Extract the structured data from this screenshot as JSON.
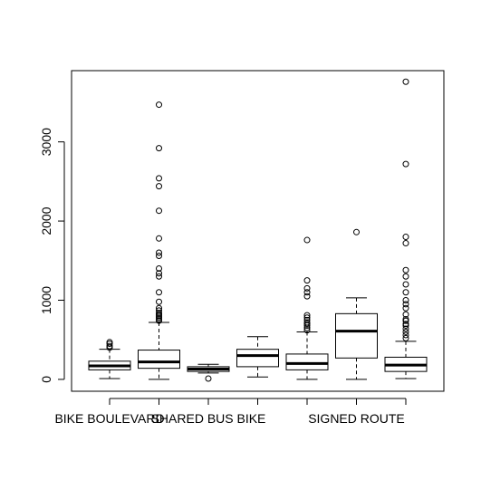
{
  "chart_data": {
    "type": "boxplot",
    "title": "",
    "xlabel": "",
    "ylabel": "",
    "ylim": [
      -150,
      3900
    ],
    "yticks": [
      0,
      1000,
      2000,
      3000
    ],
    "ytick_labels": [
      "0",
      "1000",
      "2000",
      "3000"
    ],
    "xtick_labels_shown": [
      "BIKE BOULEVARD",
      "SHARED BUS BIKE",
      "SIGNED ROUTE"
    ],
    "grid": false,
    "boxes": [
      {
        "label": "BIKE BOULEVARD",
        "label_shown": true,
        "whisker_low": 10,
        "q1": 120,
        "median": 170,
        "q3": 230,
        "whisker_high": 380,
        "outliers": [
          400,
          420,
          450,
          470
        ]
      },
      {
        "label": "",
        "label_shown": false,
        "whisker_low": 0,
        "q1": 140,
        "median": 220,
        "q3": 370,
        "whisker_high": 720,
        "outliers": [
          740,
          760,
          780,
          800,
          820,
          840,
          870,
          900,
          980,
          1100,
          1300,
          1340,
          1400,
          1560,
          1600,
          1780,
          2130,
          2440,
          2540,
          2920,
          3470
        ]
      },
      {
        "label": "SHARED BUS BIKE",
        "label_shown": true,
        "whisker_low": 80,
        "q1": 100,
        "median": 130,
        "q3": 160,
        "whisker_high": 190,
        "outliers": [
          10
        ]
      },
      {
        "label": "",
        "label_shown": false,
        "whisker_low": 30,
        "q1": 160,
        "median": 300,
        "q3": 380,
        "whisker_high": 540,
        "outliers": []
      },
      {
        "label": "",
        "label_shown": false,
        "whisker_low": 0,
        "q1": 120,
        "median": 200,
        "q3": 320,
        "whisker_high": 600,
        "outliers": [
          620,
          650,
          680,
          700,
          720,
          750,
          780,
          810,
          1050,
          1100,
          1150,
          1250,
          1760
        ]
      },
      {
        "label": "SIGNED ROUTE",
        "label_shown": true,
        "whisker_low": 0,
        "q1": 270,
        "median": 610,
        "q3": 830,
        "whisker_high": 1030,
        "outliers": [
          1860
        ]
      },
      {
        "label": "",
        "label_shown": false,
        "whisker_low": 10,
        "q1": 100,
        "median": 180,
        "q3": 280,
        "whisker_high": 480,
        "outliers": [
          520,
          560,
          600,
          640,
          680,
          700,
          740,
          760,
          820,
          900,
          950,
          1000,
          1100,
          1200,
          1300,
          1380,
          1720,
          1800,
          2720,
          3760
        ]
      }
    ]
  }
}
